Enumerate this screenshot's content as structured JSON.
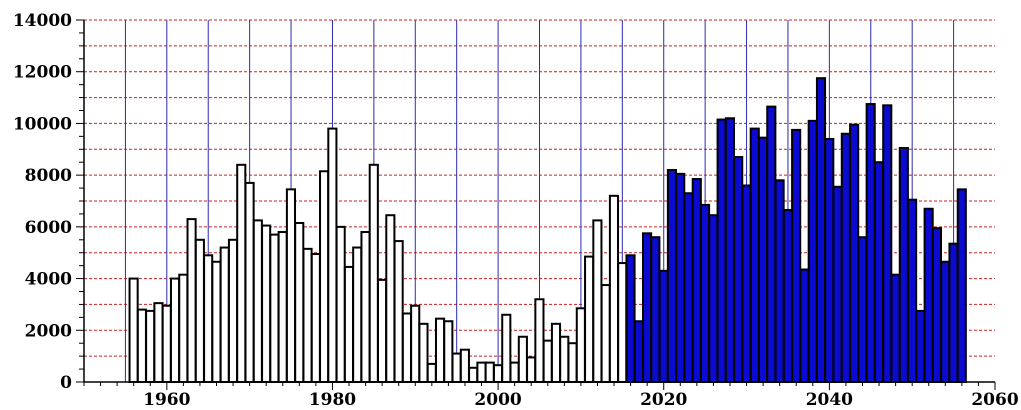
{
  "chart_data": {
    "type": "bar",
    "title": "",
    "xlabel": "",
    "ylabel": "",
    "xlim": [
      1950,
      2060
    ],
    "ylim": [
      0,
      14000
    ],
    "grid": true,
    "colors": {
      "historical": "#ffffff",
      "projection": "#0a0ad0",
      "outline": "#000000",
      "grid_vertical": "#2b2bb0",
      "grid_horizontal": "#cc2020"
    },
    "x_ticks": [
      "1960",
      "1980",
      "2000",
      "2020",
      "2040",
      "2060"
    ],
    "y_ticks": [
      "0",
      "2000",
      "4000",
      "6000",
      "8000",
      "10000",
      "12000",
      "14000"
    ],
    "series": [
      {
        "name": "",
        "style": "historical",
        "x": [
          1956,
          1957,
          1958,
          1959,
          1960,
          1961,
          1962,
          1963,
          1964,
          1965,
          1966,
          1967,
          1968,
          1969,
          1970,
          1971,
          1972,
          1973,
          1974,
          1975,
          1976,
          1977,
          1978,
          1979,
          1980,
          1981,
          1982,
          1983,
          1984,
          1985,
          1986,
          1987,
          1988,
          1989,
          1990,
          1991,
          1992,
          1993,
          1994,
          1995,
          1996,
          1997,
          1998,
          1999,
          2000,
          2001,
          2002,
          2003,
          2004,
          2005,
          2006,
          2007,
          2008,
          2009,
          2010,
          2011,
          2012,
          2013,
          2014,
          2015
        ],
        "values": [
          4000,
          2800,
          2750,
          3050,
          2950,
          4000,
          4150,
          6300,
          5500,
          4900,
          4650,
          5200,
          5500,
          8400,
          7700,
          6250,
          6050,
          5700,
          5800,
          7450,
          6150,
          5150,
          4950,
          8150,
          9800,
          6000,
          4450,
          5200,
          5800,
          8400,
          3950,
          6450,
          5450,
          2650,
          2950,
          2250,
          700,
          2450,
          2350,
          1100,
          1250,
          550,
          750,
          750,
          650,
          2600,
          750,
          1750,
          950,
          3200,
          1600,
          2250,
          1750,
          1500,
          2850,
          4850,
          6250,
          3750,
          7200,
          4600
        ]
      },
      {
        "name": "",
        "style": "projection",
        "x": [
          2016,
          2017,
          2018,
          2019,
          2020,
          2021,
          2022,
          2023,
          2024,
          2025,
          2026,
          2027,
          2028,
          2029,
          2030,
          2031,
          2032,
          2033,
          2034,
          2035,
          2036,
          2037,
          2038,
          2039,
          2040,
          2041,
          2042,
          2043,
          2044,
          2045,
          2046,
          2047,
          2048,
          2049,
          2050,
          2051,
          2052,
          2053,
          2054,
          2055,
          2056
        ],
        "values": [
          4900,
          2350,
          5750,
          5600,
          4300,
          8200,
          8050,
          7300,
          7850,
          6850,
          6450,
          10150,
          10200,
          8700,
          7600,
          9800,
          9450,
          10650,
          7800,
          6650,
          9750,
          4350,
          10100,
          11750,
          9400,
          7550,
          9600,
          9950,
          5600,
          10750,
          8500,
          10700,
          4150,
          9050,
          7050,
          2750,
          6700,
          5950,
          4650,
          5350,
          7450
        ]
      }
    ]
  }
}
